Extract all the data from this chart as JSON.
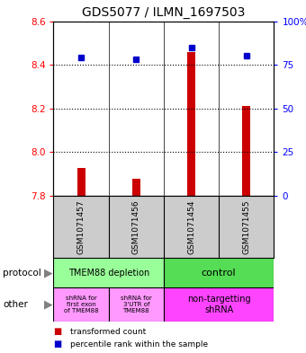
{
  "title": "GDS5077 / ILMN_1697503",
  "samples": [
    "GSM1071457",
    "GSM1071456",
    "GSM1071454",
    "GSM1071455"
  ],
  "bar_values": [
    7.93,
    7.88,
    8.46,
    8.21
  ],
  "bar_base": 7.8,
  "percentile_values": [
    79,
    78,
    85,
    80
  ],
  "ylim_left": [
    7.8,
    8.6
  ],
  "ylim_right": [
    0,
    100
  ],
  "yticks_left": [
    7.8,
    8.0,
    8.2,
    8.4,
    8.6
  ],
  "yticks_right": [
    0,
    25,
    50,
    75,
    100
  ],
  "bar_color": "#cc0000",
  "dot_color": "#0000cc",
  "protocol_labels": [
    "TMEM88 depletion",
    "control"
  ],
  "protocol_colors": [
    "#99ff99",
    "#55dd55"
  ],
  "other_labels_left1": "shRNA for\nfirst exon\nof TMEM88",
  "other_labels_left2": "shRNA for\n3'UTR of\nTMEM88",
  "other_labels_right": "non-targetting\nshRNA",
  "other_color_left": "#ff99ff",
  "other_color_right": "#ff44ff",
  "legend_bar_label": "transformed count",
  "legend_dot_label": "percentile rank within the sample",
  "bg_color": "#ffffff",
  "sample_bg_color": "#cccccc",
  "title_fontsize": 10,
  "tick_fontsize": 7.5,
  "label_fontsize": 8,
  "protocol_label": "protocol",
  "other_label": "other"
}
